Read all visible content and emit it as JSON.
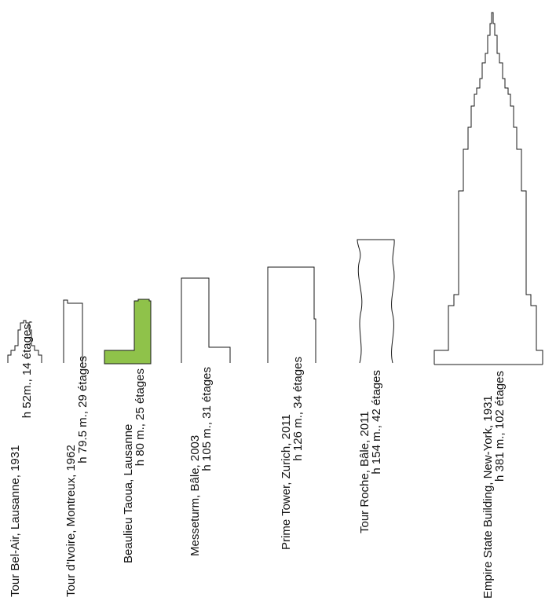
{
  "colors": {
    "outline": "#1a1a1a",
    "highlight": "#8fc24a",
    "background": "#ffffff"
  },
  "buildings": [
    {
      "id": "bel-air",
      "line1": "Tour  Bel-Air, Lausanne, 1931",
      "line2": "h 52m., 14 étages,",
      "highlighted": false
    },
    {
      "id": "ivoire",
      "line1": "Tour d'Ivoire, Montreux, 1962",
      "line2": "h 79.5 m., 29 étages",
      "highlighted": false
    },
    {
      "id": "taoua",
      "line1": "Beaulieu  Taoua, Lausanne",
      "line2": "h 80 m., 25 étages",
      "highlighted": true
    },
    {
      "id": "messeturm",
      "line1": "Messeturm, Bâle, 2003",
      "line2": "h 105 m., 31 étages",
      "highlighted": false
    },
    {
      "id": "prime",
      "line1": "Prime  Tower, Zurich, 2011",
      "line2": "h 126 m., 34 étages",
      "highlighted": false
    },
    {
      "id": "roche",
      "line1": "Tour  Roche, Bâle, 2011",
      "line2": "h 154 m., 42 étages",
      "highlighted": false
    },
    {
      "id": "empire",
      "line1": "Empire State Building, New-York, 1931",
      "line2": "h 381 m., 102 étages",
      "highlighted": false
    }
  ]
}
